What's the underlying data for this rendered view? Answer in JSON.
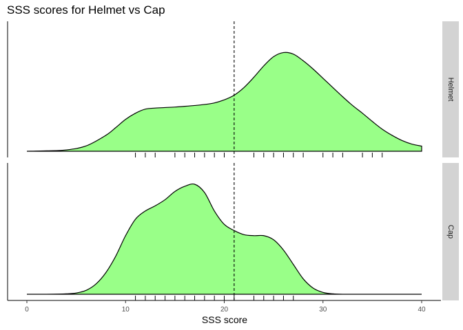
{
  "chart_data": {
    "type": "area",
    "title": "SSS scores for Helmet vs Cap",
    "xlabel": "SSS score",
    "ylabel": "",
    "xlim": [
      -1,
      41
    ],
    "xticks": [
      0,
      10,
      20,
      30,
      40
    ],
    "x_tick_labels": [
      "0",
      "10",
      "20",
      "30",
      "40"
    ],
    "y_ticks_shown": false,
    "reference_line": {
      "x": 21,
      "style": "dashed",
      "color": "#000000"
    },
    "fill_color": "#99ff88",
    "line_color": "#000000",
    "strip_color": "#d3d3d3",
    "panels": [
      {
        "name": "Helmet",
        "density_x": [
          0,
          2,
          4,
          6,
          8,
          9,
          10,
          11,
          12,
          13,
          14,
          15,
          16,
          17,
          18,
          19,
          20,
          21,
          22,
          23,
          24,
          25,
          26,
          27,
          28,
          29,
          30,
          31,
          32,
          33,
          34,
          35,
          36,
          37,
          38,
          39,
          40
        ],
        "density_y": [
          0.0,
          0.004,
          0.013,
          0.052,
          0.155,
          0.23,
          0.31,
          0.37,
          0.41,
          0.42,
          0.425,
          0.43,
          0.437,
          0.445,
          0.455,
          0.47,
          0.5,
          0.545,
          0.62,
          0.72,
          0.83,
          0.92,
          0.96,
          0.945,
          0.88,
          0.8,
          0.71,
          0.62,
          0.53,
          0.445,
          0.37,
          0.29,
          0.215,
          0.155,
          0.105,
          0.07,
          0.05
        ],
        "rug": [
          11,
          12,
          13,
          15,
          16,
          17,
          18,
          19,
          20,
          23,
          24,
          25,
          26,
          27,
          28,
          30,
          31,
          32,
          34,
          35,
          36
        ]
      },
      {
        "name": "Cap",
        "density_x": [
          0,
          2,
          4,
          5,
          6,
          7,
          8,
          9,
          10,
          11,
          12,
          13,
          14,
          15,
          16,
          17,
          18,
          19,
          20,
          21,
          22,
          23,
          24,
          25,
          26,
          27,
          28,
          29,
          30,
          31,
          32,
          34,
          36,
          38,
          40
        ],
        "density_y": [
          0.0,
          0.0,
          0.004,
          0.012,
          0.038,
          0.1,
          0.21,
          0.37,
          0.57,
          0.73,
          0.81,
          0.86,
          0.92,
          1.0,
          1.05,
          1.07,
          0.99,
          0.81,
          0.68,
          0.62,
          0.58,
          0.57,
          0.57,
          0.53,
          0.43,
          0.29,
          0.15,
          0.06,
          0.018,
          0.004,
          0.0,
          0.0,
          0.0,
          0.0,
          0.0
        ],
        "rug": [
          11,
          12,
          13,
          14,
          15,
          16,
          17,
          18,
          19,
          20,
          21,
          23,
          24,
          25,
          26,
          27
        ]
      }
    ]
  }
}
